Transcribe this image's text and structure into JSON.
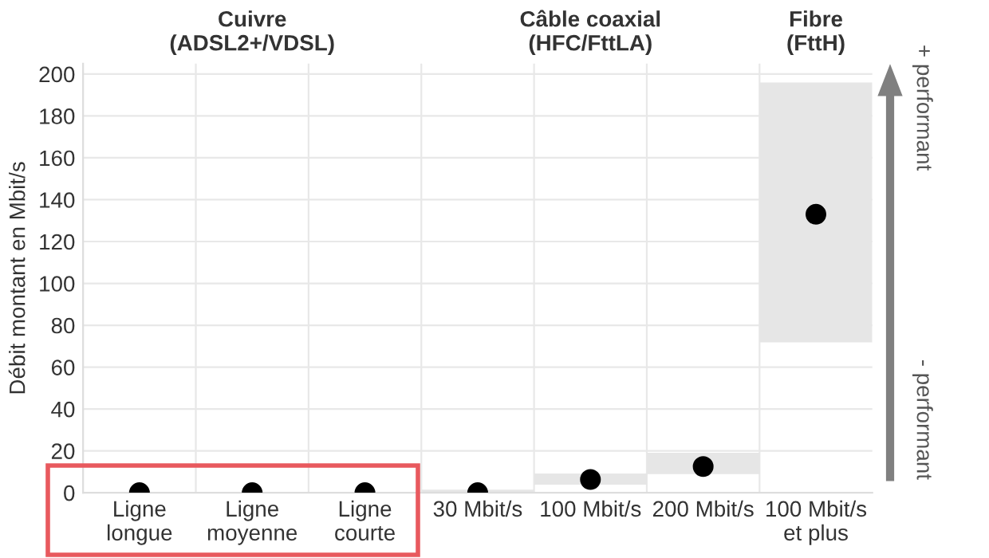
{
  "chart_data": {
    "type": "bar",
    "ylabel": "Débit montant en Mbit/s",
    "categories": [
      "Ligne\nlongue",
      "Ligne\nmoyenne",
      "Ligne\ncourte",
      "30 Mbit/s",
      "100 Mbit/s",
      "200 Mbit/s",
      "100 Mbit/s\net plus"
    ],
    "series": [
      {
        "color": "#e6e6e6",
        "base": [
          null,
          null,
          null,
          0,
          3.8,
          8.9,
          71.8
        ],
        "values": [
          null,
          null,
          null,
          1.5,
          5.4,
          10.2,
          124.2
        ]
      },
      {
        "type": "scatter",
        "color": "#000000",
        "values": [
          0,
          0,
          0,
          0,
          6.3,
          12.5,
          133
        ]
      }
    ],
    "ylim": [
      0,
      205
    ],
    "yticks": [
      0,
      20,
      40,
      60,
      80,
      100,
      120,
      140,
      160,
      180,
      200
    ],
    "grid": true,
    "marker": "circle",
    "annotations": [
      "Cuivre\n(ADSL2+/VDSL)",
      "Câble coaxial\n(HFC/FttLA)",
      "Fibre\n(FttH)",
      "+ performant",
      "- performant"
    ]
  }
}
